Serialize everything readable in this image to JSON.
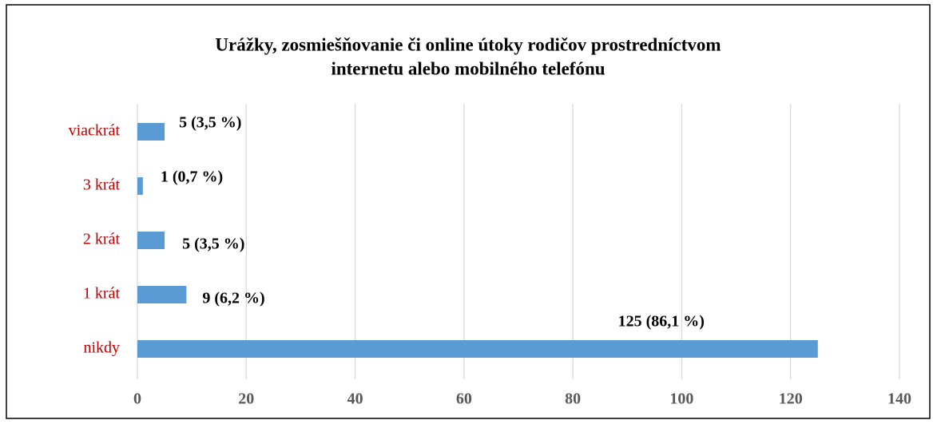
{
  "chart_data": {
    "type": "hbar",
    "title": [
      "Urážky, zosmiešňovanie či online útoky rodičov prostredníctvom",
      "internetu alebo mobilného telefónu"
    ],
    "categories": [
      "viackrát",
      "3 krát",
      "2 krát",
      "1 krát",
      "nikdy"
    ],
    "values": [
      5,
      1,
      5,
      9,
      125
    ],
    "value_labels": [
      "5 (3,5 %)",
      "1 (0,7 %)",
      "5 (3,5 %)",
      "9 (6,2 %)",
      "125 (86,1 %)"
    ],
    "color": "#5b9bd5",
    "category_color": "#c00000",
    "xlim": [
      0,
      140
    ],
    "xticks": [
      0,
      20,
      40,
      60,
      80,
      100,
      120,
      140
    ],
    "grid": true
  }
}
